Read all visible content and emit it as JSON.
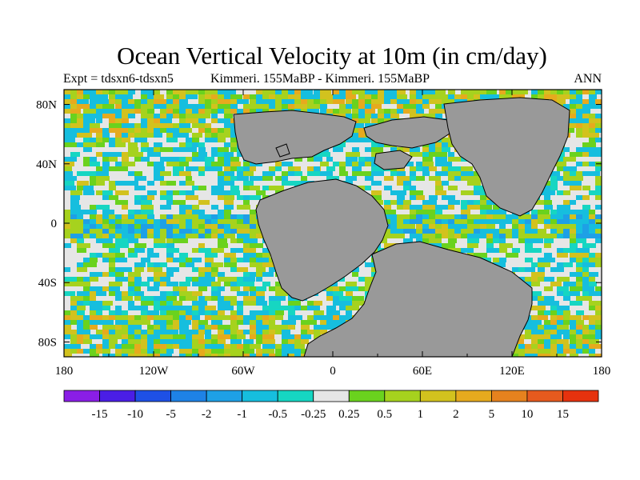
{
  "title": "Ocean Vertical Velocity at 10m (in cm/day)",
  "subtitle_left": "Expt = tdsxn6-tdsxn5",
  "subtitle_center": "Kimmeri. 155MaBP - Kimmeri. 155MaBP",
  "subtitle_right": "ANN",
  "map": {
    "projection": "cylindrical equidistant",
    "lon_range": [
      -180,
      180
    ],
    "lat_range": [
      -90,
      90
    ],
    "x_ticks": [
      "180",
      "120W",
      "60W",
      "0",
      "60E",
      "120E",
      "180"
    ],
    "y_ticks": [
      "80N",
      "40N",
      "0",
      "40S",
      "80S"
    ],
    "land_color": "#999999",
    "ocean_field": "speckled upwelling/downwelling pattern (mostly -2 to 5 cm/day), strong bands along equator and high latitudes"
  },
  "colorbar": {
    "labels": [
      "-15",
      "-10",
      "-5",
      "-2",
      "-1",
      "-0.5",
      "-0.25",
      "0.25",
      "0.5",
      "1",
      "2",
      "5",
      "10",
      "15"
    ],
    "colors": [
      "#8a1ee6",
      "#4a1ee6",
      "#1e50e6",
      "#1e82e6",
      "#1ea0e6",
      "#16bede",
      "#16d6c2",
      "#e6e6e6",
      "#6ad21e",
      "#a6d21e",
      "#d2c21e",
      "#e6aa1e",
      "#e6821e",
      "#e65a1e",
      "#e6320e"
    ]
  }
}
